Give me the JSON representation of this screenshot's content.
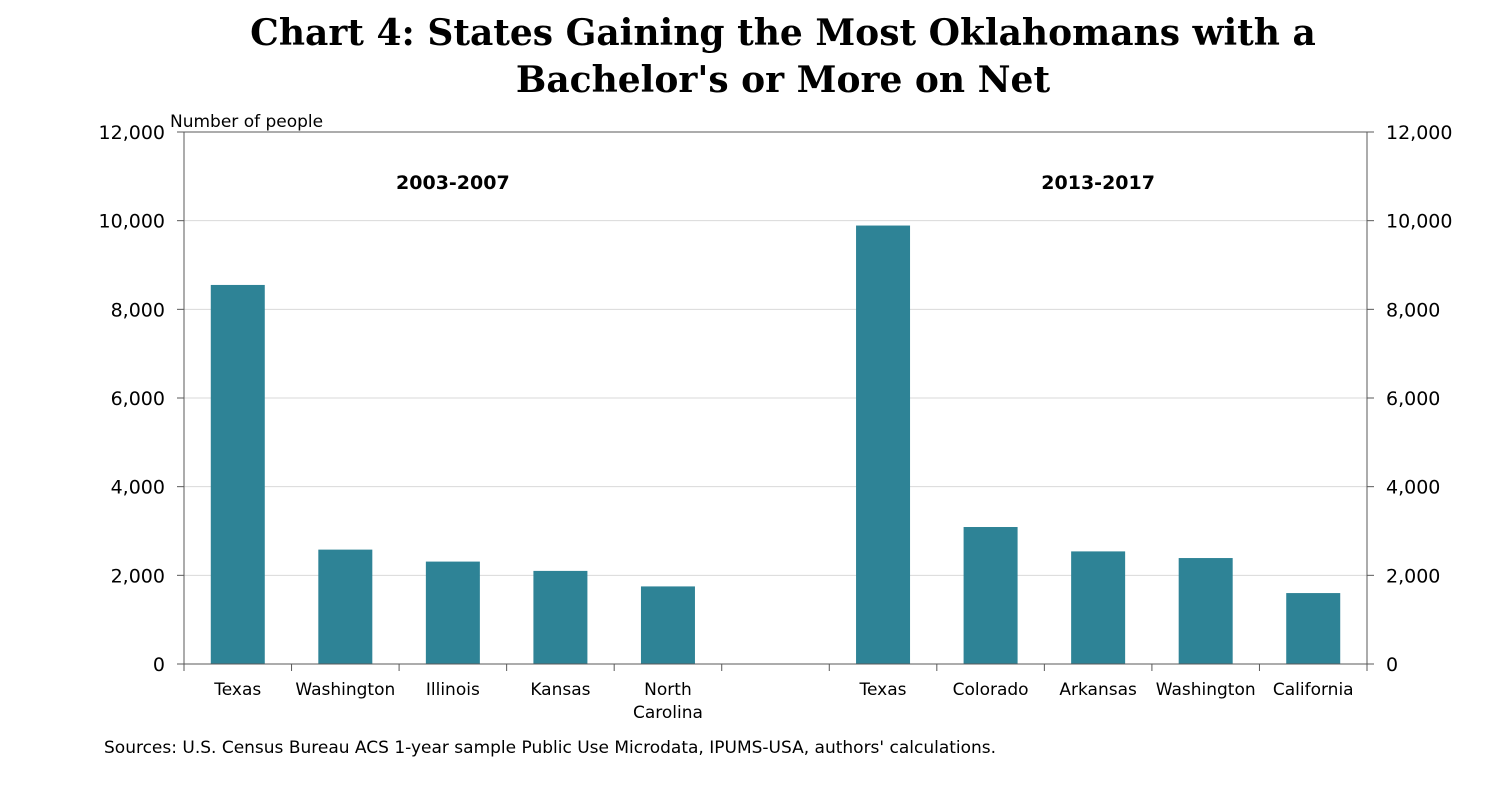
{
  "chart_data": {
    "type": "bar",
    "title_lines": [
      "Chart 4: States Gaining the Most Oklahomans with a",
      "Bachelor's or More on Net"
    ],
    "ylabel": "Number of people",
    "ylim": [
      0,
      12000
    ],
    "yticks": [
      0,
      2000,
      4000,
      6000,
      8000,
      10000,
      12000
    ],
    "ytick_labels": [
      "0",
      "2,000",
      "4,000",
      "6,000",
      "8,000",
      "10,000",
      "12,000"
    ],
    "color": "#2e8396",
    "groups": [
      {
        "label": "2003-2007",
        "categories": [
          "Texas",
          "Washington",
          "Illinois",
          "Kansas",
          "North Carolina"
        ],
        "category_lines": [
          [
            "Texas"
          ],
          [
            "Washington"
          ],
          [
            "Illinois"
          ],
          [
            "Kansas"
          ],
          [
            "North",
            "Carolina"
          ]
        ],
        "values": [
          8550,
          2580,
          2310,
          2100,
          1750
        ]
      },
      {
        "label": "2013-2017",
        "categories": [
          "Texas",
          "Colorado",
          "Arkansas",
          "Washington",
          "California"
        ],
        "category_lines": [
          [
            "Texas"
          ],
          [
            "Colorado"
          ],
          [
            "Arkansas"
          ],
          [
            "Washington"
          ],
          [
            "California"
          ]
        ],
        "values": [
          9890,
          3090,
          2540,
          2390,
          1600
        ]
      }
    ],
    "source": "Sources: U.S. Census Bureau ACS 1-year sample Public Use Microdata, IPUMS-USA, authors' calculations."
  }
}
